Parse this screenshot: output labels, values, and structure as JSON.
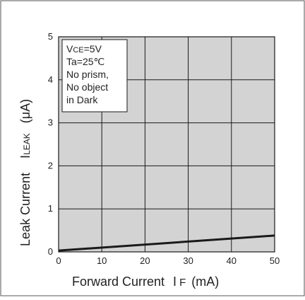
{
  "chart_data": {
    "type": "line",
    "x_label": {
      "main": "Forward Current",
      "symbol": "I",
      "symbol_sub": "F",
      "unit": "(mA)"
    },
    "y_label": {
      "main": "Leak Current",
      "symbol": "I",
      "symbol_sub": "LEAK",
      "unit": "(μA)"
    },
    "xlim": [
      0,
      50
    ],
    "ylim": [
      0,
      5
    ],
    "x_ticks": [
      "0",
      "10",
      "20",
      "30",
      "40",
      "50"
    ],
    "y_ticks": [
      "0",
      "1",
      "2",
      "3",
      "4",
      "5"
    ],
    "grid": true,
    "series": [
      {
        "x": [
          0,
          50
        ],
        "y": [
          0.03,
          0.38
        ],
        "color": "#1a1a1a"
      }
    ],
    "annotation": {
      "line1_main": "V",
      "line1_sub": "CE",
      "line1_rest": "=5V",
      "line2": "Ta=25℃",
      "line3": "No prism,",
      "line4": "No object",
      "line5": "in Dark"
    },
    "colors": {
      "plot_background": "#d3d3d3",
      "gridline": "#1a1a1a"
    }
  }
}
